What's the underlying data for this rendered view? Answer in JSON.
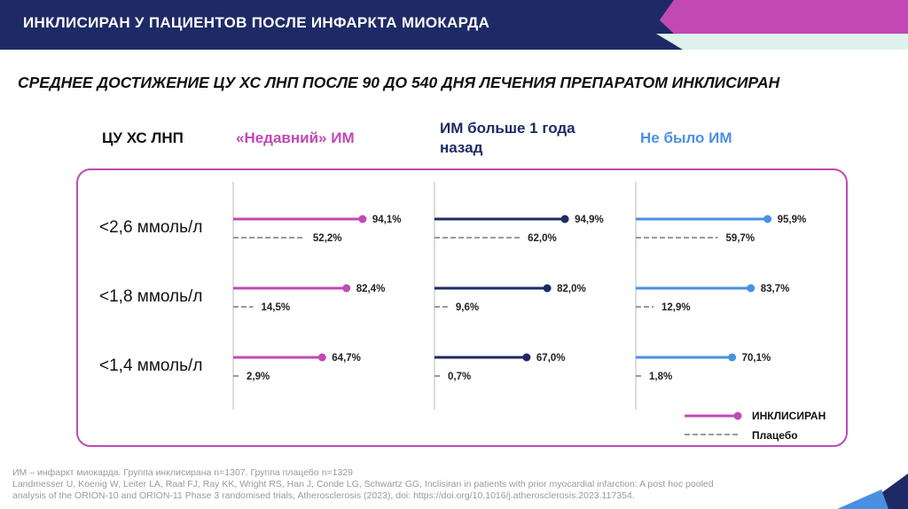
{
  "header": {
    "title": "ИНКЛИСИРАН У ПАЦИЕНТОВ ПОСЛЕ ИНФАРКТА МИОКАРДА"
  },
  "subtitle": "СРЕДНЕЕ ДОСТИЖЕНИЕ ЦУ ХС ЛНП ПОСЛЕ 90 ДО 540 ДНЯ ЛЕЧЕНИЯ ПРЕПАРАТОМ ИНКЛИСИРАН",
  "columns": {
    "row_header": "ЦУ ХС ЛНП",
    "groups": [
      {
        "line1": "«Недавний» ИМ",
        "line2": ""
      },
      {
        "line1": "ИМ больше 1 года",
        "line2": "назад"
      },
      {
        "line1": "Не было ИМ",
        "line2": ""
      }
    ]
  },
  "colors": {
    "header_bg": "#1e2a66",
    "recent_mi": "#c249b5",
    "mi_over_1yr": "#1e2a66",
    "no_mi": "#4a90e2",
    "placebo": "#9a9a9a",
    "frame": "#c249b5"
  },
  "chart_data": {
    "type": "bar",
    "orientation": "horizontal",
    "categories": [
      "<2,6 ммоль/л",
      "<1,8 ммоль/л",
      "<1,4 ммоль/л"
    ],
    "groups": [
      "«Недавний» ИМ",
      "ИМ больше 1 года назад",
      "Не было ИМ"
    ],
    "series": [
      {
        "name": "ИНКЛИСИРАН",
        "style": "solid-line-with-dot",
        "values": [
          [
            94.1,
            82.4,
            64.7
          ],
          [
            94.9,
            82.0,
            67.0
          ],
          [
            95.9,
            83.7,
            70.1
          ]
        ],
        "labels": [
          [
            "94,1%",
            "82,4%",
            "64,7%"
          ],
          [
            "94,9%",
            "82,0%",
            "67,0%"
          ],
          [
            "95,9%",
            "83,7%",
            "70,1%"
          ]
        ]
      },
      {
        "name": "Плацебо",
        "style": "dashed-line",
        "values": [
          [
            52.2,
            14.5,
            2.9
          ],
          [
            62.0,
            9.6,
            0.7
          ],
          [
            59.7,
            12.9,
            1.8
          ]
        ],
        "labels": [
          [
            "52,2%",
            "14,5%",
            "2,9%"
          ],
          [
            "62,0%",
            "9,6%",
            "0,7%"
          ],
          [
            "59,7%",
            "12,9%",
            "1,8%"
          ]
        ]
      }
    ],
    "xlim": [
      0,
      100
    ],
    "legend": [
      {
        "name": "ИНКЛИСИРАН"
      },
      {
        "name": "Плацебо"
      }
    ],
    "legend_position": "bottom-right"
  },
  "footnote": {
    "line1": "ИМ – инфаркт миокарда. Группа инклисирана n=1307. Группа плацебо n=1329",
    "line2": "Landmesser U, Koenig W, Leiter LA, Raal FJ, Ray KK, Wright RS, Han J, Conde LG, Schwartz GG, Inclisiran in patients with prior myocardial infarction: A post hoc pooled",
    "line3": "analysis of the ORION-10 and ORION-11 Phase 3 randomised trials, Atherosclerosis (2023), doi: https://doi.org/10.1016/j.atherosclerosis.2023.117354."
  }
}
